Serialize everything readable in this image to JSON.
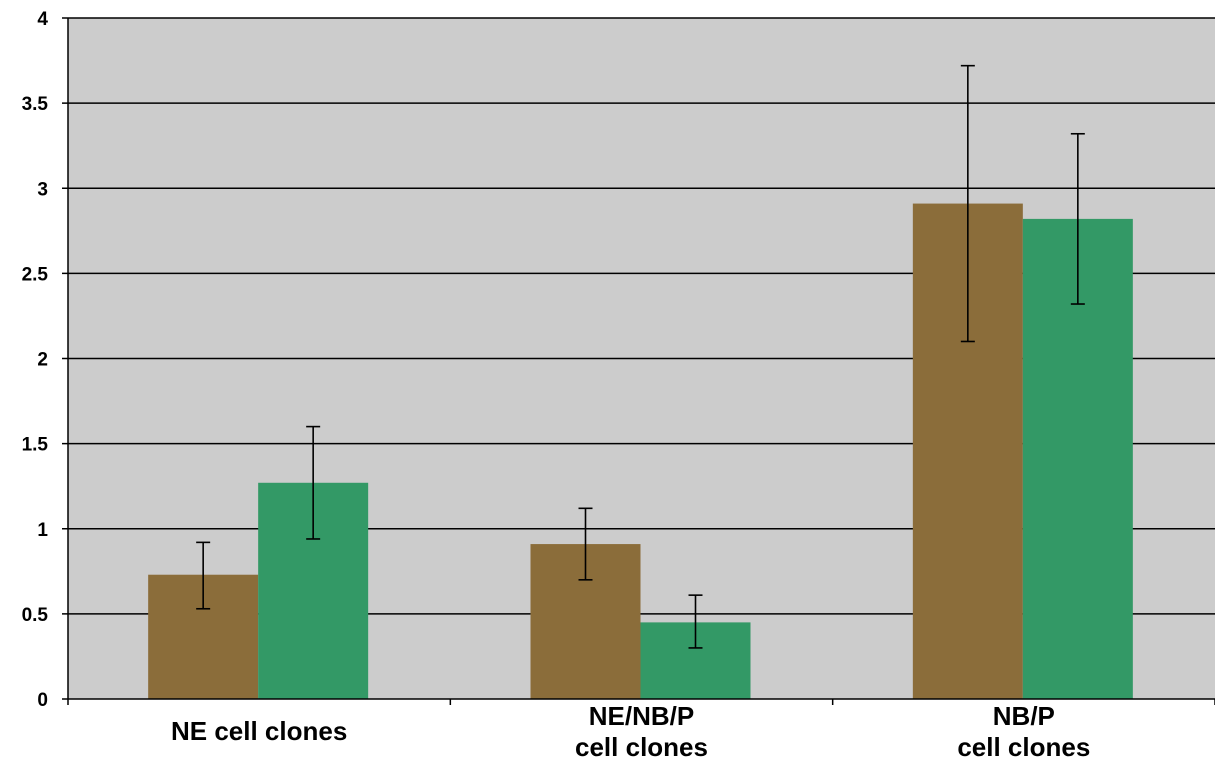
{
  "chart_data": {
    "type": "bar",
    "categories": [
      [
        "NE cell clones"
      ],
      [
        "NE/NB/P",
        "cell clones"
      ],
      [
        "NB/P",
        "cell clones"
      ]
    ],
    "series": [
      {
        "color": "#8b6d3a",
        "values": [
          0.73,
          0.91,
          2.91
        ],
        "error_low": [
          0.53,
          0.7,
          2.1
        ],
        "error_high": [
          0.92,
          1.12,
          3.72
        ]
      },
      {
        "color": "#339966",
        "values": [
          1.27,
          0.45,
          2.82
        ],
        "error_low": [
          0.94,
          0.3,
          2.32
        ],
        "error_high": [
          1.6,
          0.61,
          3.32
        ]
      }
    ],
    "ylim": [
      0,
      4
    ],
    "yticks": [
      0,
      0.5,
      1,
      1.5,
      2,
      2.5,
      3,
      3.5,
      4
    ],
    "ytick_labels": [
      "0",
      "0.5",
      "1",
      "1.5",
      "2",
      "2.5",
      "3",
      "3.5",
      "4"
    ],
    "grid": true,
    "legend": "none",
    "plot_background": "#cccccc"
  }
}
